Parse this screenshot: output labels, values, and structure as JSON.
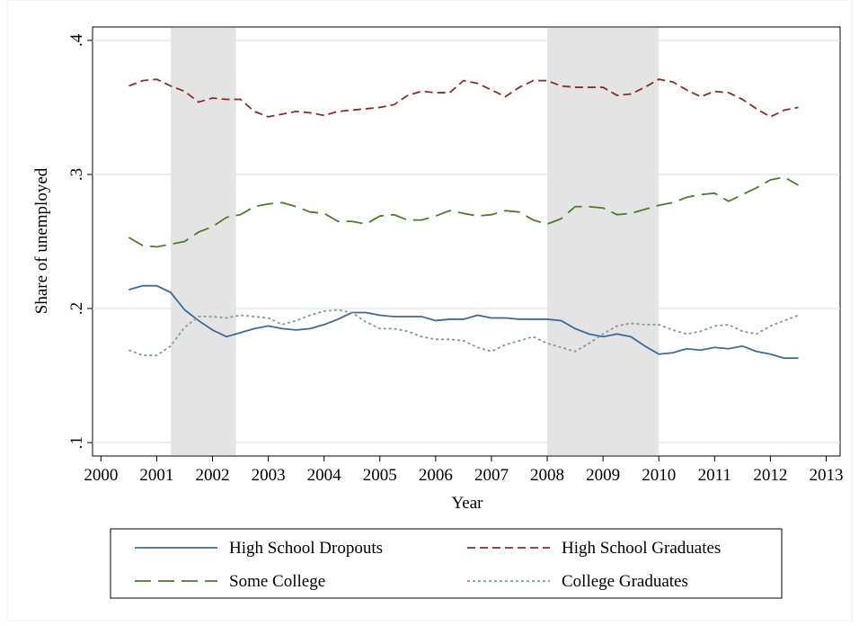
{
  "chart_data": {
    "type": "line",
    "x_label": "Year",
    "y_label": "Share of unemployed",
    "x": [
      2000.5,
      2000.75,
      2001,
      2001.25,
      2001.5,
      2001.75,
      2002,
      2002.25,
      2002.5,
      2002.75,
      2003,
      2003.25,
      2003.5,
      2003.75,
      2004,
      2004.25,
      2004.5,
      2004.75,
      2005,
      2005.25,
      2005.5,
      2005.75,
      2006,
      2006.25,
      2006.5,
      2006.75,
      2007,
      2007.25,
      2007.5,
      2007.75,
      2008,
      2008.25,
      2008.5,
      2008.75,
      2009,
      2009.25,
      2009.5,
      2009.75,
      2010,
      2010.25,
      2010.5,
      2010.75,
      2011,
      2011.25,
      2011.5,
      2011.75,
      2012,
      2012.25,
      2012.5
    ],
    "series": [
      {
        "name": "High School Dropouts",
        "color": "#3e6a94",
        "dash": "solid",
        "values": [
          0.214,
          0.217,
          0.217,
          0.212,
          0.199,
          0.191,
          0.184,
          0.179,
          0.182,
          0.185,
          0.187,
          0.185,
          0.184,
          0.185,
          0.188,
          0.192,
          0.197,
          0.197,
          0.195,
          0.194,
          0.194,
          0.194,
          0.191,
          0.192,
          0.192,
          0.195,
          0.193,
          0.193,
          0.192,
          0.192,
          0.192,
          0.191,
          0.185,
          0.181,
          0.179,
          0.181,
          0.179,
          0.172,
          0.166,
          0.167,
          0.17,
          0.169,
          0.171,
          0.17,
          0.172,
          0.168,
          0.166,
          0.163,
          0.163
        ]
      },
      {
        "name": "High School Graduates",
        "color": "#8b2d2d",
        "dash": "dashed",
        "values": [
          0.366,
          0.37,
          0.371,
          0.366,
          0.362,
          0.354,
          0.357,
          0.356,
          0.356,
          0.347,
          0.343,
          0.345,
          0.347,
          0.346,
          0.344,
          0.347,
          0.348,
          0.349,
          0.35,
          0.352,
          0.359,
          0.362,
          0.361,
          0.361,
          0.37,
          0.368,
          0.363,
          0.358,
          0.365,
          0.37,
          0.37,
          0.366,
          0.365,
          0.365,
          0.365,
          0.359,
          0.36,
          0.365,
          0.371,
          0.369,
          0.363,
          0.358,
          0.362,
          0.361,
          0.356,
          0.349,
          0.343,
          0.348,
          0.35
        ]
      },
      {
        "name": "Some College",
        "color": "#4e7a2e",
        "dash": "longdash",
        "values": [
          0.253,
          0.247,
          0.246,
          0.248,
          0.25,
          0.257,
          0.261,
          0.268,
          0.27,
          0.276,
          0.278,
          0.279,
          0.276,
          0.272,
          0.271,
          0.265,
          0.265,
          0.263,
          0.269,
          0.27,
          0.266,
          0.266,
          0.269,
          0.273,
          0.271,
          0.269,
          0.27,
          0.273,
          0.272,
          0.266,
          0.263,
          0.267,
          0.276,
          0.276,
          0.275,
          0.27,
          0.271,
          0.274,
          0.277,
          0.279,
          0.283,
          0.285,
          0.286,
          0.28,
          0.285,
          0.29,
          0.296,
          0.298,
          0.292
        ]
      },
      {
        "name": "College Graduates",
        "color": "#7f9e92",
        "dash": "dotted",
        "values": [
          0.169,
          0.165,
          0.165,
          0.172,
          0.186,
          0.194,
          0.194,
          0.193,
          0.195,
          0.194,
          0.193,
          0.188,
          0.191,
          0.195,
          0.198,
          0.199,
          0.197,
          0.19,
          0.185,
          0.185,
          0.183,
          0.179,
          0.177,
          0.177,
          0.176,
          0.171,
          0.168,
          0.173,
          0.176,
          0.179,
          0.174,
          0.171,
          0.168,
          0.174,
          0.181,
          0.187,
          0.189,
          0.188,
          0.188,
          0.184,
          0.181,
          0.183,
          0.187,
          0.188,
          0.183,
          0.181,
          0.187,
          0.191,
          0.195
        ]
      }
    ],
    "shaded_periods": [
      [
        2001.25,
        2002.42
      ],
      [
        2008,
        2010
      ]
    ],
    "shade_color": "#e4e4e4",
    "xlim": [
      1999.85,
      2013.25
    ],
    "xticks": [
      2000,
      2001,
      2002,
      2003,
      2004,
      2005,
      2006,
      2007,
      2008,
      2009,
      2010,
      2011,
      2012,
      2013
    ],
    "ylim": [
      0.09,
      0.41
    ],
    "yticks": [
      {
        "value": 0.1,
        "label": ".1"
      },
      {
        "value": 0.2,
        "label": ".2"
      },
      {
        "value": 0.3,
        "label": ".3"
      },
      {
        "value": 0.4,
        "label": ".4"
      }
    ],
    "grid": true,
    "legend": "bottom"
  }
}
